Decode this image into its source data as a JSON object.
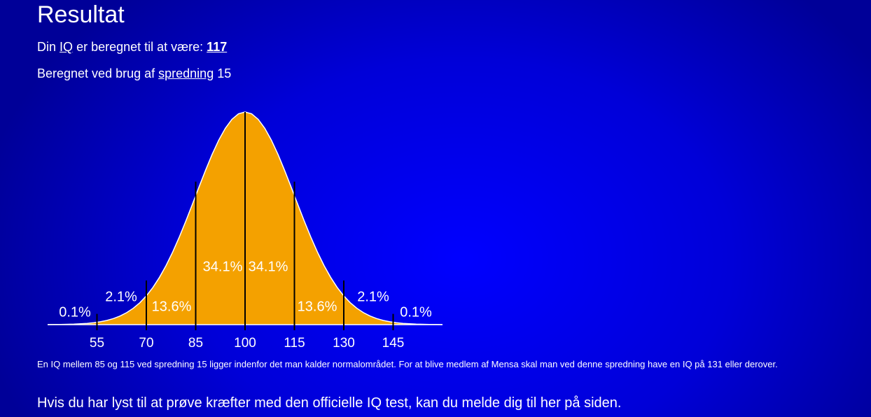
{
  "title": "Resultat",
  "result": {
    "prefix": "Din",
    "link": "IQ",
    "middle": "er beregnet til at være:",
    "value": 117
  },
  "spread": {
    "prefix": "Beregnet ved brug af",
    "link": "spredning",
    "value": 15
  },
  "chart_data": {
    "type": "normal",
    "xlim": [
      40,
      160
    ],
    "xticks": [
      55,
      70,
      85,
      100,
      115,
      130,
      145
    ],
    "values": [
      0.1,
      2.1,
      13.6,
      34.1,
      34.1,
      13.6,
      2.1,
      0.1
    ],
    "value_labels": [
      "0.1%",
      "2.1%",
      "13.6%",
      "34.1%",
      "34.1%",
      "13.6%",
      "2.1%",
      "0.1%"
    ],
    "color": "#f4a100"
  },
  "note": "En IQ mellem 85 og 115 ved spredning 15 ligger indenfor det man kalder normalområdet. For at blive medlem af Mensa skal man ved denne spredning have en IQ på 131 eller derover.",
  "footer": "Hvis du har lyst til at prøve kræfter med den officielle IQ test, kan du melde dig til her på siden."
}
